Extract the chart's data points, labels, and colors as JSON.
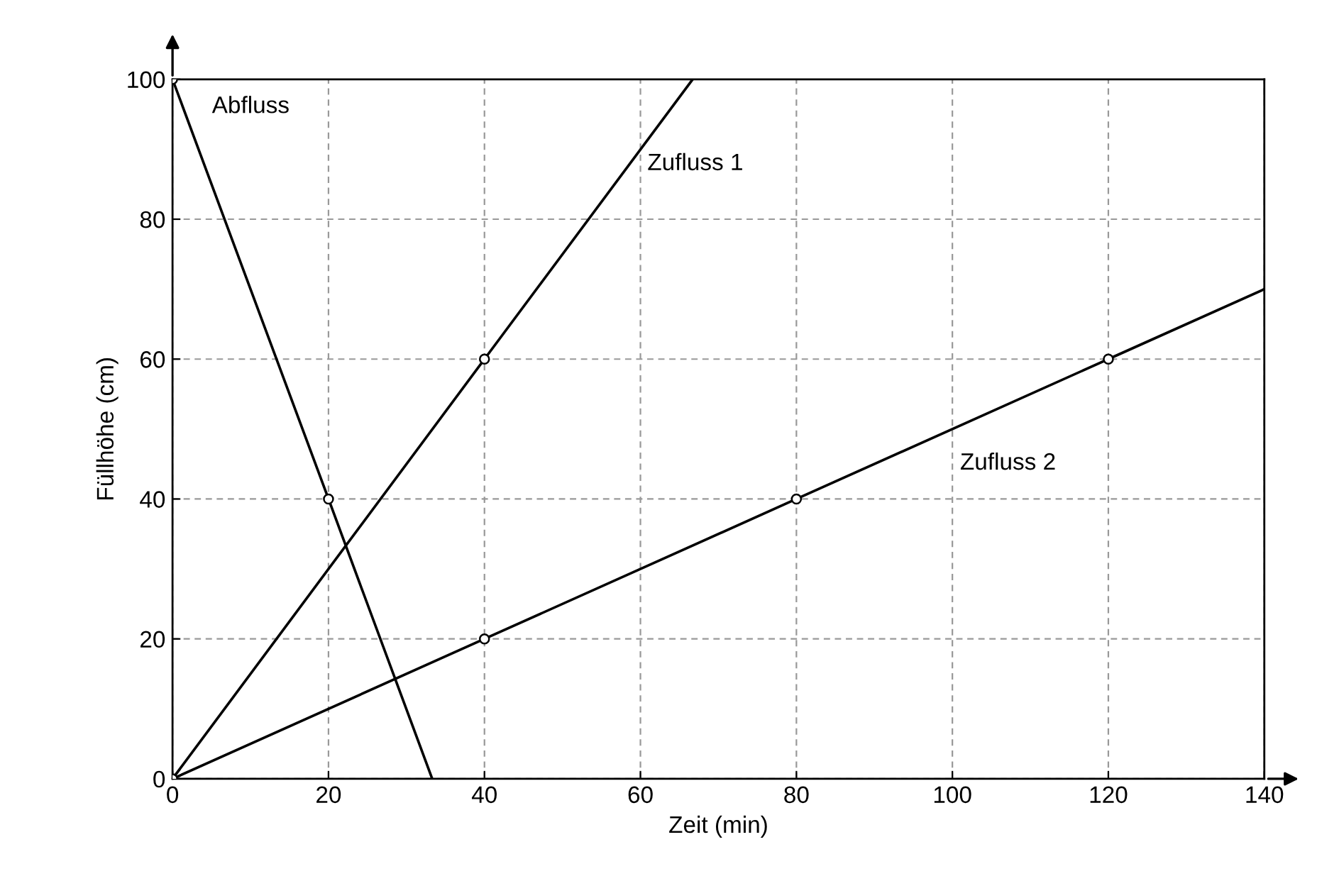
{
  "chart_data": {
    "type": "line",
    "xlabel": "Zeit (min)",
    "ylabel": "Füllhöhe (cm)",
    "xlim": [
      0,
      140
    ],
    "ylim": [
      0,
      100
    ],
    "xticks": [
      0,
      20,
      40,
      60,
      80,
      100,
      120,
      140
    ],
    "yticks": [
      0,
      20,
      40,
      60,
      80,
      100
    ],
    "grid": true,
    "line_style": "solid",
    "series": [
      {
        "name": "Abfluss",
        "color": "#000000",
        "x": [
          0,
          20,
          33.3
        ],
        "values": [
          100,
          40,
          0
        ]
      },
      {
        "name": "Zufluss 1",
        "color": "#000000",
        "x": [
          0,
          40,
          66.7
        ],
        "values": [
          0,
          60,
          100
        ]
      },
      {
        "name": "Zufluss 2",
        "color": "#000000",
        "x": [
          0,
          40,
          80,
          120,
          140
        ],
        "values": [
          0,
          20,
          40,
          60,
          70
        ]
      },
      {
        "type": "scatter",
        "color": "#000000",
        "marker": "circle",
        "x": [
          0,
          20,
          0,
          40,
          40,
          80,
          120
        ],
        "values": [
          100,
          40,
          0,
          60,
          20,
          40,
          60
        ]
      }
    ]
  }
}
